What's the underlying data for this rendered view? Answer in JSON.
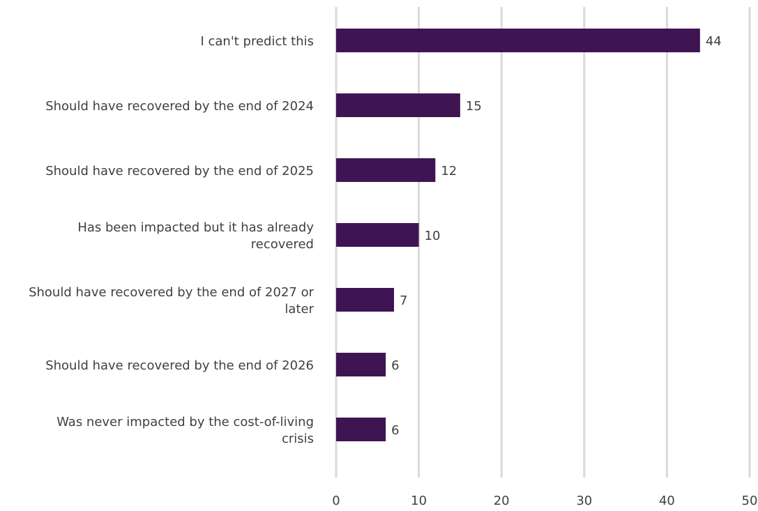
{
  "chart_data": {
    "type": "bar",
    "orientation": "horizontal",
    "categories": [
      [
        "I can't predict this"
      ],
      [
        "Should have recovered by the end of 2024"
      ],
      [
        "Should have recovered by the end of 2025"
      ],
      [
        "Has been impacted but it has already",
        "recovered"
      ],
      [
        "Should have recovered by the end of 2027 or",
        "later"
      ],
      [
        "Should have recovered by the end of 2026"
      ],
      [
        "Was never impacted by the cost-of-living",
        "crisis"
      ]
    ],
    "values": [
      44,
      15,
      12,
      10,
      7,
      6,
      6
    ],
    "xlim": [
      0,
      50
    ],
    "xticks": [
      0,
      10,
      20,
      30,
      40,
      50
    ],
    "grid": true,
    "legend": "none",
    "bar_color": "#3f1452",
    "grid_color": "#d9d9d9",
    "text_color": "#404040"
  }
}
